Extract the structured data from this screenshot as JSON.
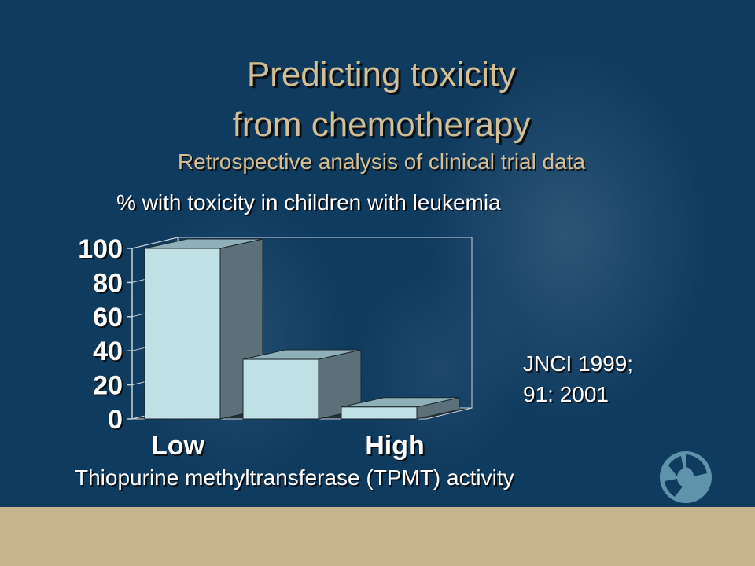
{
  "slide": {
    "title_line1": "Predicting toxicity",
    "title_line2": "from chemotherapy",
    "subtitle": "Retrospective analysis of clinical trial data",
    "reference_line1": "JNCI 1999;",
    "reference_line2": "91: 2001"
  },
  "colors": {
    "background": "#0f3b5f",
    "title": "#d4bf95",
    "footer": "#c8b48c",
    "bar_front": "#bfe1e5",
    "bar_side": "#5b7078"
  },
  "chart_data": {
    "type": "bar",
    "title": "% with toxicity in children with leukemia",
    "xlabel": "Thiopurine methyltransferase (TPMT) activity",
    "ylabel": "",
    "categories": [
      "Low",
      "",
      "High"
    ],
    "values": [
      100,
      35,
      7
    ],
    "ylim": [
      0,
      100
    ],
    "yticks": [
      "0",
      "20",
      "40",
      "60",
      "80",
      "100"
    ],
    "style": "3d-bar",
    "grid": false,
    "legend": "none"
  }
}
